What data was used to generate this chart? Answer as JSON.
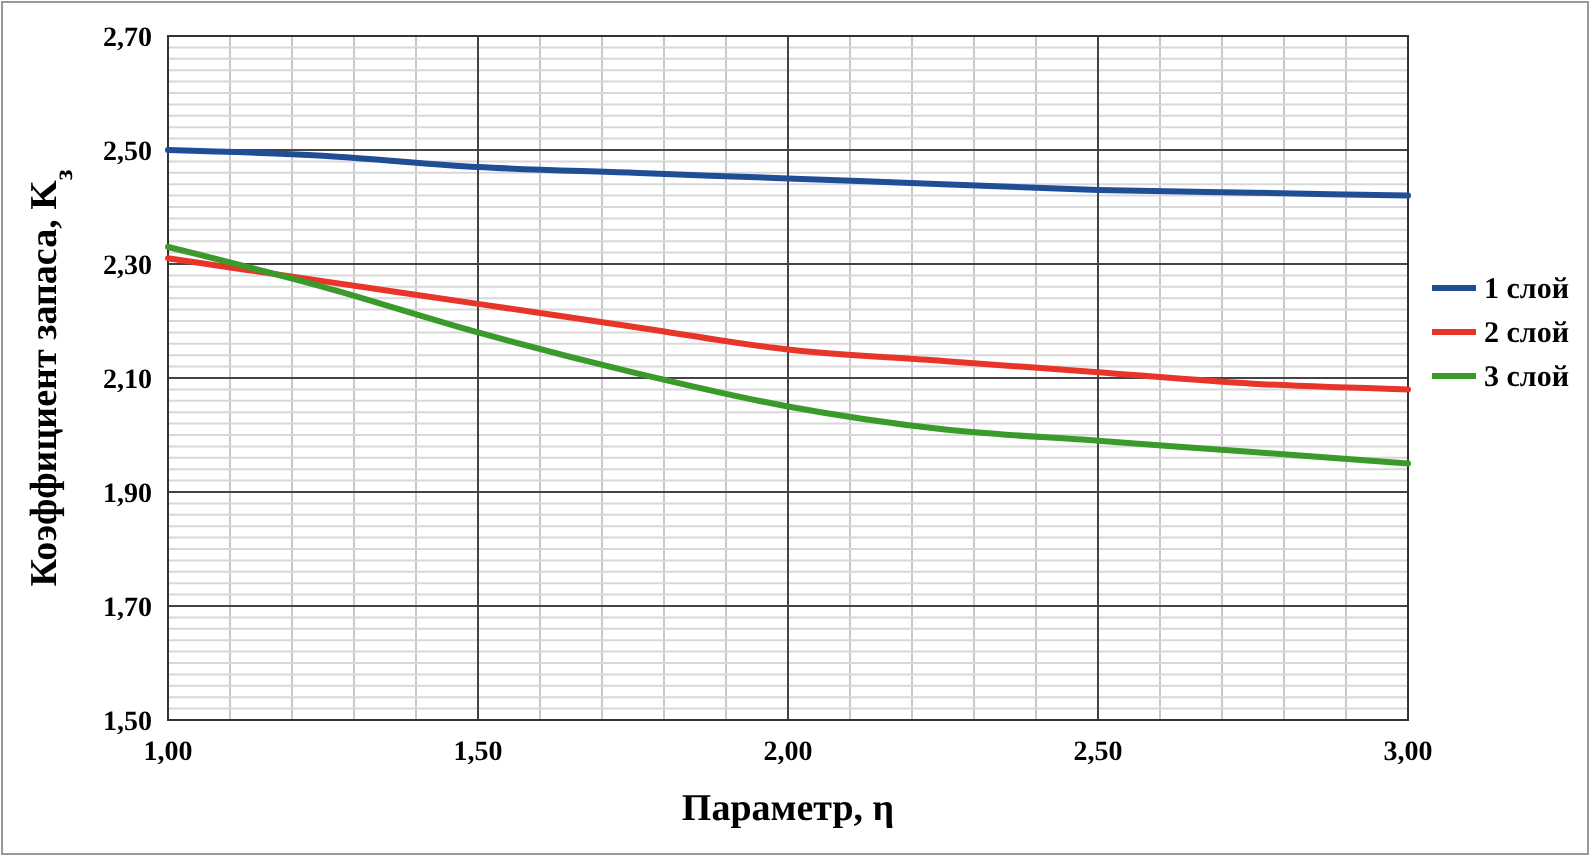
{
  "chart_data": {
    "type": "line",
    "xlabel": "Параметр, η",
    "ylabel": "Коэффициент запаса, K$_{з}$",
    "x": [
      1,
      1.25,
      1.5,
      1.75,
      2,
      2.25,
      2.5,
      2.75,
      3
    ],
    "series": [
      {
        "name": "1 слой",
        "color": "#1f4e96",
        "values": [
          2.5,
          2.49,
          2.47,
          2.46,
          2.45,
          2.44,
          2.43,
          2.425,
          2.42
        ]
      },
      {
        "name": "2 слой",
        "color": "#e8352a",
        "values": [
          2.31,
          2.27,
          2.23,
          2.19,
          2.15,
          2.13,
          2.11,
          2.09,
          2.08
        ]
      },
      {
        "name": "3 слой",
        "color": "#3a9a2a",
        "values": [
          2.33,
          2.26,
          2.18,
          2.11,
          2.05,
          2.01,
          1.99,
          1.97,
          1.95
        ]
      }
    ],
    "xlim": [
      1,
      3
    ],
    "ylim": [
      1.5,
      2.7
    ],
    "xticks": [
      {
        "value": 1,
        "label": "1,00"
      },
      {
        "value": 1.5,
        "label": "1,50"
      },
      {
        "value": 2,
        "label": "2,00"
      },
      {
        "value": 2.5,
        "label": "2,50"
      },
      {
        "value": 3,
        "label": "3,00"
      }
    ],
    "yticks": [
      {
        "value": 1.5,
        "label": "1,50"
      },
      {
        "value": 1.7,
        "label": "1,70"
      },
      {
        "value": 1.9,
        "label": "1,90"
      },
      {
        "value": 2.1,
        "label": "2,10"
      },
      {
        "value": 2.3,
        "label": "2,30"
      },
      {
        "value": 2.5,
        "label": "2,50"
      },
      {
        "value": 2.7,
        "label": "2,70"
      }
    ],
    "grid": true,
    "legend": "right",
    "marker": "none",
    "line_style": "solid"
  }
}
